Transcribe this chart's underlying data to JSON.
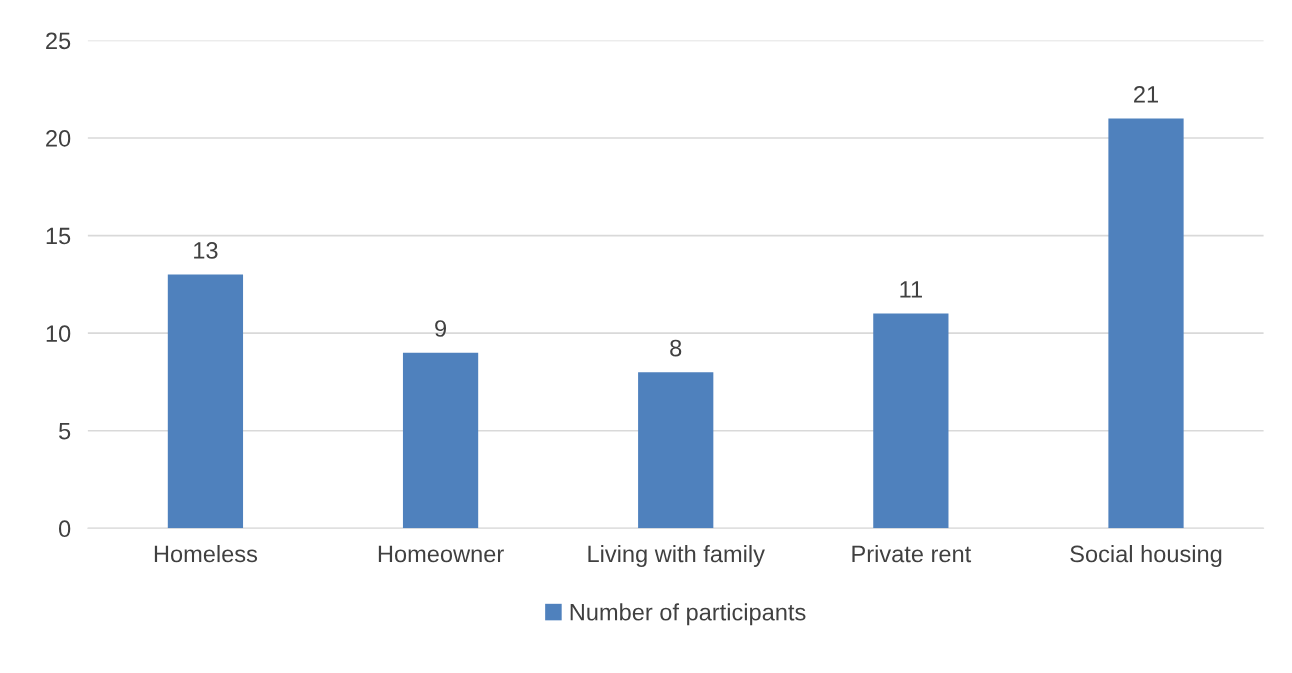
{
  "chart_data": {
    "type": "bar",
    "categories": [
      "Homeless",
      "Homeowner",
      "Living with family",
      "Private rent",
      "Social housing"
    ],
    "series": [
      {
        "name": "Number of participants",
        "color": "#4f81bd",
        "values": [
          13,
          9,
          8,
          11,
          21
        ]
      }
    ],
    "ylim": [
      0,
      25
    ],
    "yticks": [
      0,
      5,
      10,
      15,
      20,
      25
    ],
    "grid": "y",
    "legend": "bottom",
    "data_labels": true
  }
}
